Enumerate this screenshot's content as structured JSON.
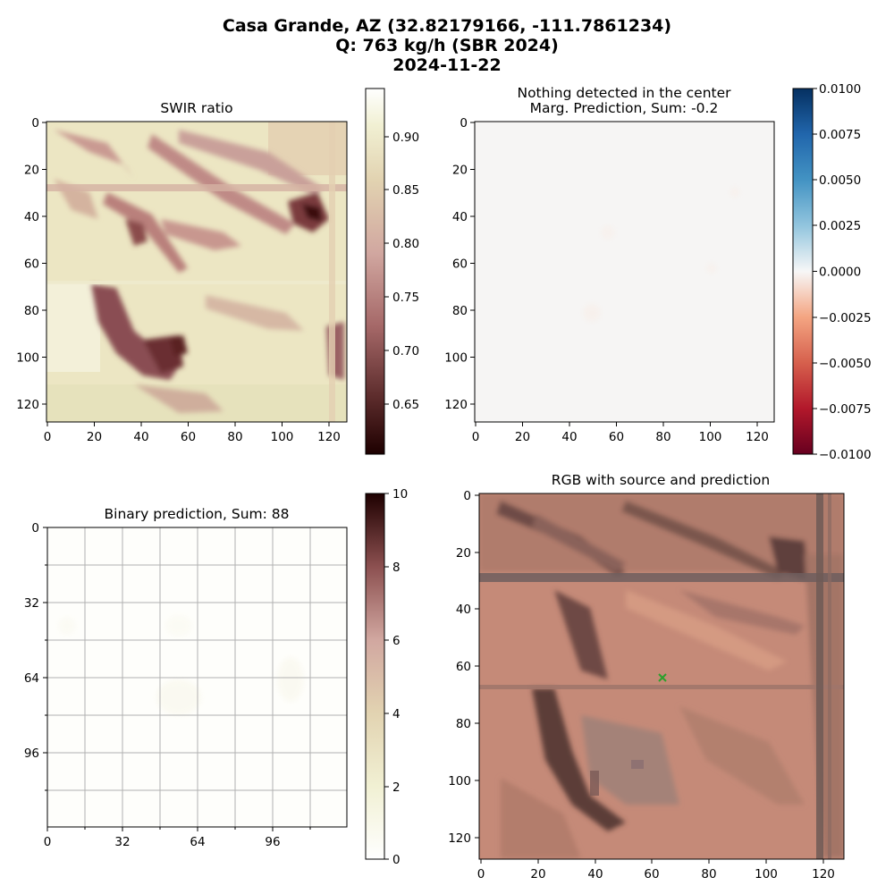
{
  "figure": {
    "title_lines": [
      "Casa Grande, AZ (32.82179166, -111.7861234)",
      "Q: 763 kg/h (SBR 2024)",
      "2024-11-22"
    ]
  },
  "chart_data": [
    {
      "id": "swir",
      "type": "heatmap",
      "title": "SWIR ratio",
      "xlim": [
        0,
        128
      ],
      "ylim": [
        128,
        0
      ],
      "x_ticks": [
        "0",
        "20",
        "40",
        "60",
        "80",
        "100",
        "120"
      ],
      "y_ticks": [
        "0",
        "20",
        "40",
        "60",
        "80",
        "100",
        "120"
      ],
      "colormap": "pink",
      "colorbar": {
        "min": 0.6,
        "max": 0.94,
        "ticks": [
          "0.65",
          "0.70",
          "0.75",
          "0.80",
          "0.85",
          "0.90"
        ]
      },
      "notes": "Mostly high values (0.85-0.92); darker features (~0.62-0.75) along ridges, a horizontal stripe near row 30, a dark blob near (110,35) and a dark curved region near (20-60, 70-110)."
    },
    {
      "id": "marg",
      "type": "heatmap",
      "title": "Nothing detected in the center\nMarg. Prediction, Sum: -0.2",
      "title_lines": [
        "Nothing detected in the center",
        "Marg. Prediction, Sum: -0.2"
      ],
      "xlim": [
        0,
        128
      ],
      "ylim": [
        128,
        0
      ],
      "x_ticks": [
        "0",
        "20",
        "40",
        "60",
        "80",
        "100",
        "120"
      ],
      "y_ticks": [
        "0",
        "20",
        "40",
        "60",
        "80",
        "100",
        "120"
      ],
      "colormap": "RdBu",
      "colorbar": {
        "min": -0.01,
        "max": 0.01,
        "ticks": [
          "0.0100",
          "0.0075",
          "0.0050",
          "0.0025",
          "0.0000",
          "−0.0025",
          "−0.0050",
          "−0.0075",
          "−0.0100"
        ]
      },
      "notes": "Nearly uniform ~0 values across the field."
    },
    {
      "id": "binary",
      "type": "heatmap",
      "title": "Binary prediction, Sum: 88",
      "xlim": [
        0,
        128
      ],
      "ylim": [
        128,
        0
      ],
      "x_ticks": [
        "0",
        "32",
        "64",
        "96"
      ],
      "y_ticks": [
        "0",
        "32",
        "64",
        "96"
      ],
      "grid": true,
      "colormap": "pink_r",
      "colorbar": {
        "min": 0,
        "max": 10,
        "ticks": [
          "10",
          "8",
          "6",
          "4",
          "2",
          "0"
        ]
      },
      "notes": "Nearly all values near 0; grid every 16 pixels."
    },
    {
      "id": "rgb",
      "type": "heatmap",
      "title": "RGB with source and prediction",
      "xlim": [
        0,
        128
      ],
      "ylim": [
        128,
        0
      ],
      "x_ticks": [
        "0",
        "20",
        "40",
        "60",
        "80",
        "100",
        "120"
      ],
      "y_ticks": [
        "0",
        "20",
        "40",
        "60",
        "80",
        "100",
        "120"
      ],
      "source_marker": {
        "x": 64,
        "y": 64,
        "symbol": "x",
        "color": "#2ca02c"
      },
      "notes": "Satellite RGB image of desert terrain; horizontal road near row 30, vertical road near column 119, dark curved ridge near columns 20-40 rows 70-110."
    }
  ]
}
